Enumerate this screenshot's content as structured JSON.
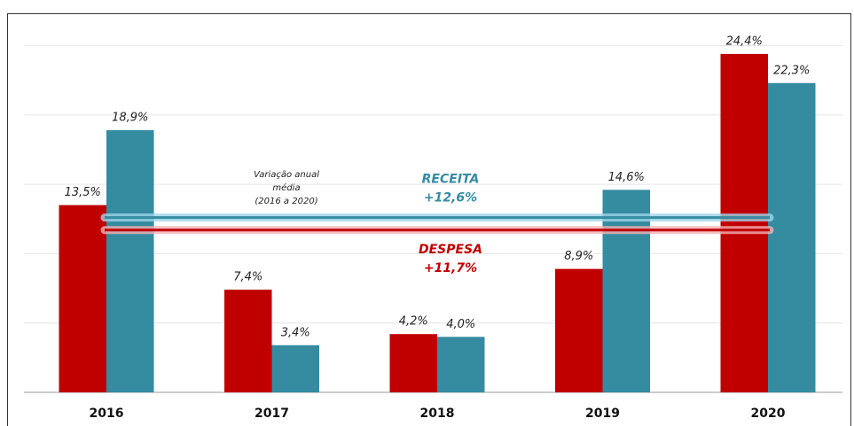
{
  "chart_data": {
    "type": "bar",
    "categories": [
      "2016",
      "2017",
      "2018",
      "2019",
      "2020"
    ],
    "series": [
      {
        "name": "DESPESA",
        "color": "#c00000",
        "values": [
          13.5,
          7.4,
          4.2,
          8.9,
          24.4
        ],
        "value_labels": [
          "13,5%",
          "7,4%",
          "4,2%",
          "8,9%",
          "24,4%"
        ],
        "average": 11.7,
        "average_label": "+11,7%"
      },
      {
        "name": "RECEITA",
        "color": "#358ba0",
        "values": [
          18.9,
          3.4,
          4.0,
          14.6,
          22.3
        ],
        "value_labels": [
          "18,9%",
          "3,4%",
          "4,0%",
          "14,6%",
          "22,3%"
        ],
        "average": 12.6,
        "average_label": "+12,6%"
      }
    ],
    "annotation": [
      "Variação anual",
      "média",
      "(2016 a 2020)"
    ],
    "ylim": [
      0,
      25
    ],
    "yticks": [
      0,
      5,
      10,
      15,
      20,
      25
    ],
    "grid": true
  }
}
